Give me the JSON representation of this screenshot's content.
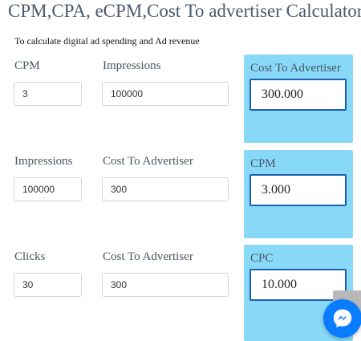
{
  "page": {
    "title": "CPM,CPA, eCPM,Cost To advertiser Calculator",
    "subtitle": "To calculate digital ad spending and Ad revenue"
  },
  "calculators": [
    {
      "field1": {
        "label": "CPM",
        "value": "3"
      },
      "field2": {
        "label": "Impressions",
        "value": "100000"
      },
      "result": {
        "label": "Cost To Advertiser",
        "value": "300.000"
      }
    },
    {
      "field1": {
        "label": "Impressions",
        "value": "100000"
      },
      "field2": {
        "label": "Cost To Advertiser",
        "value": "300"
      },
      "result": {
        "label": "CPM",
        "value": "3.000"
      }
    },
    {
      "field1": {
        "label": "Clicks",
        "value": "30"
      },
      "field2": {
        "label": "Cost To Advertiser",
        "value": "300"
      },
      "result": {
        "label": "CPC",
        "value": "10.000"
      }
    }
  ],
  "widgets": {
    "scroll_top_icon": "chevron-up-icon",
    "chat_icon": "messenger-icon"
  },
  "colors": {
    "result_panel": "#88d9f8",
    "result_border": "#1b5fb0",
    "messenger": "#0a7cff"
  }
}
